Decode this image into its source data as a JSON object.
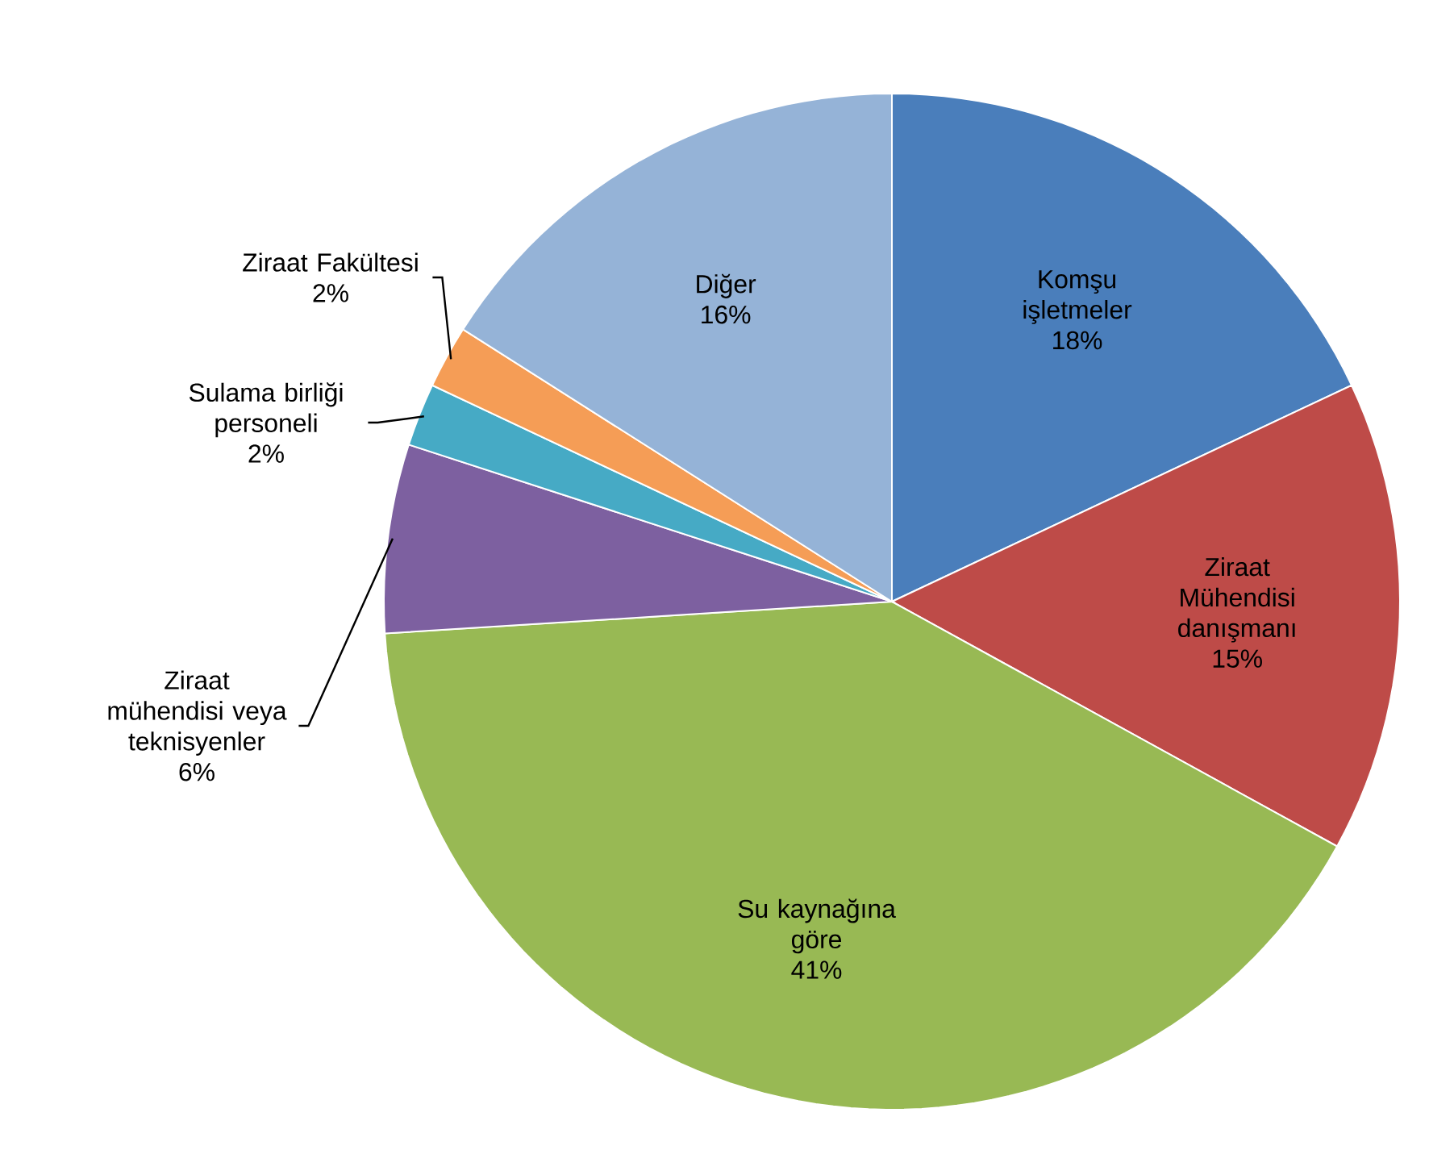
{
  "chart_data": {
    "type": "pie",
    "categories": [
      "Komşu işletmeler",
      "Ziraat Mühendisi danışmanı",
      "Su kaynağına göre",
      "Ziraat mühendisi veya teknisyenler",
      "Sulama birliği personeli",
      "Ziraat Fakültesi",
      "Diğer"
    ],
    "values": [
      18,
      15,
      41,
      6,
      2,
      2,
      16
    ],
    "colors": [
      "#4a7ebb",
      "#be4b48",
      "#98b954",
      "#7d60a0",
      "#46aac5",
      "#f59d56",
      "#95b3d7"
    ],
    "value_labels": [
      "18%",
      "15%",
      "41%",
      "6%",
      "2%",
      "2%",
      "16%"
    ]
  }
}
